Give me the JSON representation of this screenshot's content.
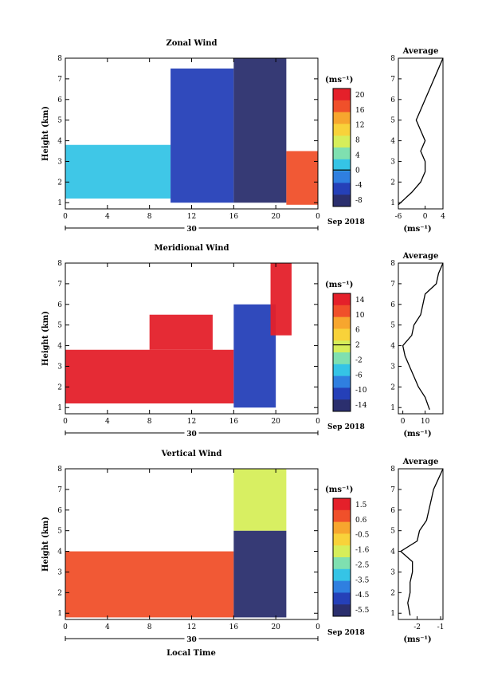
{
  "panels": [
    {
      "id": "zonal",
      "title": "Zonal Wind",
      "unit": "(ms⁻¹)",
      "colorbar_ticks": [
        "20",
        "16",
        "12",
        "8",
        "4",
        "0",
        "-4",
        "-8"
      ],
      "zero_line_index": 5,
      "avg_title": "Average",
      "avg_ticks": [
        "-6",
        "0",
        "4"
      ],
      "avg_unit": "(ms⁻¹)"
    },
    {
      "id": "meridional",
      "title": "Meridional Wind",
      "unit": "(ms⁻¹)",
      "colorbar_ticks": [
        "14",
        "10",
        "6",
        "2",
        "-2",
        "-6",
        "-10",
        "-14"
      ],
      "zero_line_index": 3,
      "avg_title": "Average",
      "avg_ticks": [
        "0",
        "10"
      ],
      "avg_unit": "(ms⁻¹)"
    },
    {
      "id": "vertical",
      "title": "Vertical Wind",
      "unit": "(ms⁻¹)",
      "colorbar_ticks": [
        "1.5",
        "0.6",
        "-0.5",
        "-1.6",
        "-2.5",
        "-3.5",
        "-4.5",
        "-5.5"
      ],
      "zero_line_index": -1,
      "avg_title": "Average",
      "avg_ticks": [
        "-2",
        "-1"
      ],
      "avg_unit": "(ms⁻¹)"
    }
  ],
  "shared": {
    "x_ticks": [
      "0",
      "4",
      "8",
      "12",
      "16",
      "20",
      "0"
    ],
    "y_ticks": [
      "1",
      "2",
      "3",
      "4",
      "5",
      "6",
      "7",
      "8"
    ],
    "y_label": "Height (km)",
    "date_day": "30",
    "date_month": "Sep 2018",
    "x_label": "Local Time"
  },
  "colors": {
    "scale": [
      "#2b2f6e",
      "#2540b8",
      "#2f7fe0",
      "#35c4e6",
      "#7fe0b0",
      "#d6ee5a",
      "#f8d23a",
      "#f7a62e",
      "#f0502a",
      "#e4202a"
    ]
  },
  "chart_data": [
    {
      "type": "heatmap",
      "title": "Zonal Wind",
      "xlabel": "Local Time",
      "ylabel": "Height (km)",
      "x_range": [
        0,
        24
      ],
      "y_range": [
        0.7,
        8
      ],
      "colorbar": {
        "label": "(ms⁻¹)",
        "range": [
          -8,
          20
        ]
      },
      "approx_regions": [
        {
          "x": [
            0,
            10
          ],
          "y": [
            1.2,
            3.8
          ],
          "value": 2
        },
        {
          "x": [
            10,
            16
          ],
          "y": [
            1.0,
            7.5
          ],
          "value": -4
        },
        {
          "x": [
            16,
            21
          ],
          "y": [
            1.0,
            8.0
          ],
          "value": -8
        },
        {
          "x": [
            21,
            24
          ],
          "y": [
            0.9,
            3.5
          ],
          "value": 16
        }
      ],
      "average_profile": {
        "x_range": [
          -6,
          4
        ],
        "height": [
          0.9,
          1.5,
          2.0,
          2.5,
          3.0,
          3.5,
          4.0,
          4.5,
          5.0,
          5.5,
          6.0,
          6.5,
          7.0,
          7.5,
          8.0
        ],
        "value": [
          -6,
          -3,
          -1,
          0,
          0,
          -1,
          0,
          -1,
          -2,
          -1,
          0,
          1,
          2,
          3,
          4
        ]
      }
    },
    {
      "type": "heatmap",
      "title": "Meridional Wind",
      "xlabel": "Local Time",
      "ylabel": "Height (km)",
      "x_range": [
        0,
        24
      ],
      "y_range": [
        0.7,
        8
      ],
      "colorbar": {
        "label": "(ms⁻¹)",
        "range": [
          -14,
          14
        ]
      },
      "approx_regions": [
        {
          "x": [
            0,
            16
          ],
          "y": [
            1.2,
            3.8
          ],
          "value": 14
        },
        {
          "x": [
            8,
            14
          ],
          "y": [
            3.8,
            5.5
          ],
          "value": 12
        },
        {
          "x": [
            16,
            20
          ],
          "y": [
            1.0,
            6.0
          ],
          "value": -10
        },
        {
          "x": [
            19.5,
            21.5
          ],
          "y": [
            4.5,
            8.0
          ],
          "value": 14
        }
      ],
      "average_profile": {
        "x_range": [
          -2,
          18
        ],
        "height": [
          0.9,
          1.5,
          2.0,
          2.5,
          3.0,
          3.5,
          4.0,
          4.5,
          5.0,
          5.5,
          6.0,
          6.5,
          7.0,
          7.5,
          8.0
        ],
        "value": [
          12,
          10,
          7,
          5,
          3,
          1,
          0,
          4,
          5,
          8,
          9,
          10,
          15,
          16,
          18
        ]
      }
    },
    {
      "type": "heatmap",
      "title": "Vertical Wind",
      "xlabel": "Local Time",
      "ylabel": "Height (km)",
      "x_range": [
        0,
        24
      ],
      "y_range": [
        0.7,
        8
      ],
      "colorbar": {
        "label": "(ms⁻¹)",
        "range": [
          -5.5,
          1.5
        ]
      },
      "approx_regions": [
        {
          "x": [
            0,
            16
          ],
          "y": [
            0.8,
            4.0
          ],
          "value": 0.3
        },
        {
          "x": [
            16,
            21
          ],
          "y": [
            0.8,
            5.0
          ],
          "value": -5.0
        },
        {
          "x": [
            16,
            21
          ],
          "y": [
            5.0,
            8.0
          ],
          "value": -2.0
        }
      ],
      "average_profile": {
        "x_range": [
          -2.8,
          -0.9
        ],
        "height": [
          0.9,
          1.5,
          2.0,
          2.5,
          3.0,
          3.5,
          4.0,
          4.5,
          5.0,
          5.5,
          6.0,
          6.5,
          7.0,
          7.5,
          8.0
        ],
        "value": [
          -2.3,
          -2.4,
          -2.3,
          -2.3,
          -2.2,
          -2.2,
          -2.7,
          -2.0,
          -1.9,
          -1.6,
          -1.5,
          -1.4,
          -1.3,
          -1.1,
          -0.9
        ]
      }
    }
  ]
}
